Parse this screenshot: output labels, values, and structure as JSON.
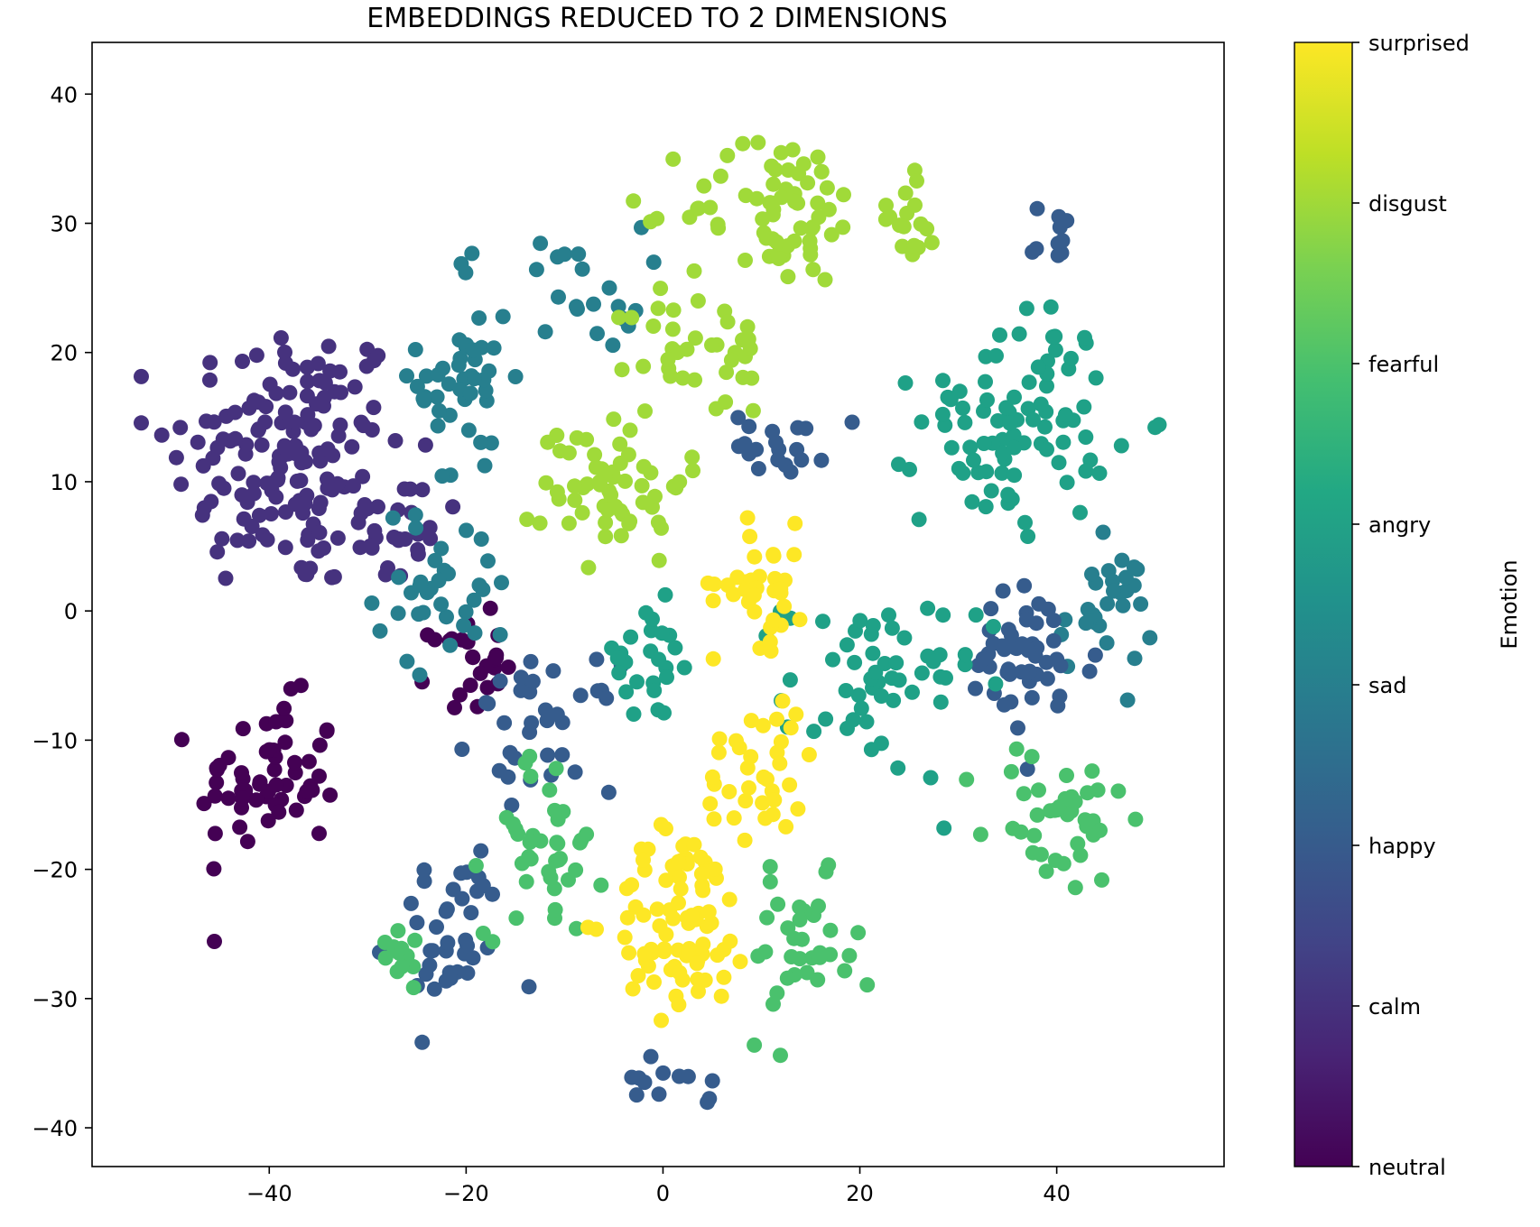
{
  "chart_data": {
    "type": "scatter",
    "title": "EMBEDDINGS REDUCED TO 2 DIMENSIONS",
    "xlabel": "",
    "ylabel": "",
    "xlim": [
      -58,
      57
    ],
    "ylim": [
      -43,
      44
    ],
    "xticks": [
      -40,
      -20,
      0,
      20,
      40
    ],
    "xtick_labels": [
      "−40",
      "−20",
      "0",
      "20",
      "40"
    ],
    "yticks": [
      40,
      30,
      20,
      10,
      0,
      -10,
      -20,
      -30,
      -40
    ],
    "ytick_labels": [
      "40",
      "30",
      "20",
      "10",
      "0",
      "−10",
      "−20",
      "−30",
      "−40"
    ],
    "grid": false,
    "colormap": "viridis",
    "colorbar": {
      "label": "Emotion",
      "range": [
        0,
        7
      ],
      "ticks": [
        {
          "value": 7,
          "label": "surprised"
        },
        {
          "value": 6,
          "label": "disgust"
        },
        {
          "value": 5,
          "label": "fearful"
        },
        {
          "value": 4,
          "label": "angry"
        },
        {
          "value": 3,
          "label": "sad"
        },
        {
          "value": 2,
          "label": "happy"
        },
        {
          "value": 1,
          "label": "calm"
        },
        {
          "value": 0,
          "label": "neutral"
        }
      ]
    },
    "colors": {
      "neutral": "#440154",
      "calm": "#46327e",
      "happy": "#365c8d",
      "sad": "#277f8e",
      "angry": "#1fa187",
      "fearful": "#4ac16d",
      "disgust": "#a0da39",
      "surprised": "#fde725"
    },
    "clusters": [
      {
        "label": "calm",
        "value": 1,
        "center": [
          -38,
          12
        ],
        "spread": [
          10,
          9
        ],
        "n": 150
      },
      {
        "label": "calm",
        "value": 1,
        "center": [
          -27,
          6
        ],
        "spread": [
          4,
          4
        ],
        "n": 25
      },
      {
        "label": "neutral",
        "value": 0,
        "center": [
          -40,
          -13
        ],
        "spread": [
          6,
          5
        ],
        "n": 60
      },
      {
        "label": "neutral",
        "value": 0,
        "center": [
          -20,
          -4
        ],
        "spread": [
          3,
          3
        ],
        "n": 25
      },
      {
        "label": "sad",
        "value": 3,
        "center": [
          -20,
          18
        ],
        "spread": [
          4,
          8
        ],
        "n": 45
      },
      {
        "label": "sad",
        "value": 3,
        "center": [
          -22,
          2
        ],
        "spread": [
          6,
          5
        ],
        "n": 35
      },
      {
        "label": "sad",
        "value": 3,
        "center": [
          -8,
          25
        ],
        "spread": [
          5,
          4
        ],
        "n": 20
      },
      {
        "label": "sad",
        "value": 3,
        "center": [
          45,
          0
        ],
        "spread": [
          4,
          4
        ],
        "n": 30
      },
      {
        "label": "happy",
        "value": 2,
        "center": [
          -22,
          -25
        ],
        "spread": [
          5,
          6
        ],
        "n": 40
      },
      {
        "label": "happy",
        "value": 2,
        "center": [
          -12,
          -9
        ],
        "spread": [
          6,
          4
        ],
        "n": 35
      },
      {
        "label": "happy",
        "value": 2,
        "center": [
          37,
          -4
        ],
        "spread": [
          6,
          5
        ],
        "n": 50
      },
      {
        "label": "happy",
        "value": 2,
        "center": [
          40,
          29
        ],
        "spread": [
          2,
          2
        ],
        "n": 10
      },
      {
        "label": "happy",
        "value": 2,
        "center": [
          12,
          13
        ],
        "spread": [
          4,
          2
        ],
        "n": 20
      },
      {
        "label": "happy",
        "value": 2,
        "center": [
          0,
          -37
        ],
        "spread": [
          4,
          2
        ],
        "n": 12
      },
      {
        "label": "angry",
        "value": 4,
        "center": [
          36,
          15
        ],
        "spread": [
          8,
          7
        ],
        "n": 90
      },
      {
        "label": "angry",
        "value": 4,
        "center": [
          22,
          -6
        ],
        "spread": [
          8,
          6
        ],
        "n": 55
      },
      {
        "label": "angry",
        "value": 4,
        "center": [
          -2,
          -4
        ],
        "spread": [
          5,
          4
        ],
        "n": 25
      },
      {
        "label": "fearful",
        "value": 5,
        "center": [
          -12,
          -18
        ],
        "spread": [
          5,
          6
        ],
        "n": 40
      },
      {
        "label": "fearful",
        "value": 5,
        "center": [
          14,
          -27
        ],
        "spread": [
          5,
          5
        ],
        "n": 35
      },
      {
        "label": "fearful",
        "value": 5,
        "center": [
          40,
          -16
        ],
        "spread": [
          6,
          5
        ],
        "n": 40
      },
      {
        "label": "fearful",
        "value": 5,
        "center": [
          -27,
          -26
        ],
        "spread": [
          3,
          2
        ],
        "n": 12
      },
      {
        "label": "disgust",
        "value": 6,
        "center": [
          -5,
          10
        ],
        "spread": [
          6,
          5
        ],
        "n": 60
      },
      {
        "label": "disgust",
        "value": 6,
        "center": [
          12,
          31
        ],
        "spread": [
          8,
          5
        ],
        "n": 70
      },
      {
        "label": "disgust",
        "value": 6,
        "center": [
          4,
          20
        ],
        "spread": [
          6,
          4
        ],
        "n": 35
      },
      {
        "label": "disgust",
        "value": 6,
        "center": [
          25,
          30
        ],
        "spread": [
          3,
          5
        ],
        "n": 15
      },
      {
        "label": "surprised",
        "value": 7,
        "center": [
          2,
          -24
        ],
        "spread": [
          6,
          6
        ],
        "n": 85
      },
      {
        "label": "surprised",
        "value": 7,
        "center": [
          10,
          -12
        ],
        "spread": [
          5,
          5
        ],
        "n": 35
      },
      {
        "label": "surprised",
        "value": 7,
        "center": [
          10,
          2
        ],
        "spread": [
          4,
          4
        ],
        "n": 35
      }
    ]
  }
}
